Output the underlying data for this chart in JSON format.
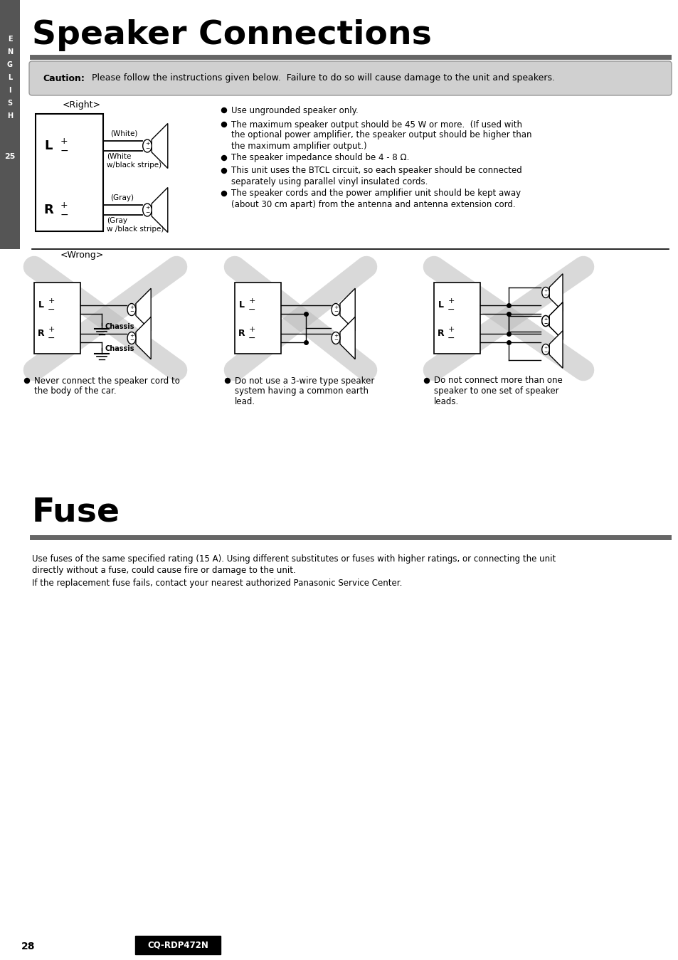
{
  "page_bg": "#ffffff",
  "sidebar_color": "#555555",
  "title": "Speaker Connections",
  "fuse_title": "Fuse",
  "caution_text_bold": "Caution:",
  "caution_text_normal": " Please follow the instructions given below.  Failure to do so will cause damage to the unit and speakers.",
  "right_label": "<Right>",
  "wrong_label": "<Wrong>",
  "bullet_points": [
    "Use ungrounded speaker only.",
    "The maximum speaker output should be 45 W or more.  (If used with",
    "the optional power amplifier, the speaker output should be higher than",
    "the maximum amplifier output.)",
    "The speaker impedance should be 4 - 8 Ω.",
    "This unit uses the BTCL circuit, so each speaker should be connected",
    "separately using parallel vinyl insulated cords.",
    "The speaker cords and the power amplifier unit should be kept away",
    "(about 30 cm apart) from the antenna and antenna extension cord."
  ],
  "wrong_note_1": [
    "Never connect the speaker cord to",
    "the body of the car."
  ],
  "wrong_note_2": [
    "Do not use a 3-wire type speaker",
    "system having a common earth",
    "lead."
  ],
  "wrong_note_3": [
    "Do not connect more than one",
    "speaker to one set of speaker",
    "leads."
  ],
  "fuse_text_1": "Use fuses of the same specified rating (15 A). Using different substitutes or fuses with higher ratings, or connecting the unit",
  "fuse_text_2": "directly without a fuse, could cause fire or damage to the unit.",
  "fuse_text_3": "If the replacement fuse fails, contact your nearest authorized Panasonic Service Center.",
  "footer_model": "CQ-RDP472N",
  "footer_page": "28",
  "sidebar_letters": [
    "E",
    "N",
    "G",
    "L",
    "I",
    "S",
    "H"
  ],
  "sidebar_page_num": "25"
}
